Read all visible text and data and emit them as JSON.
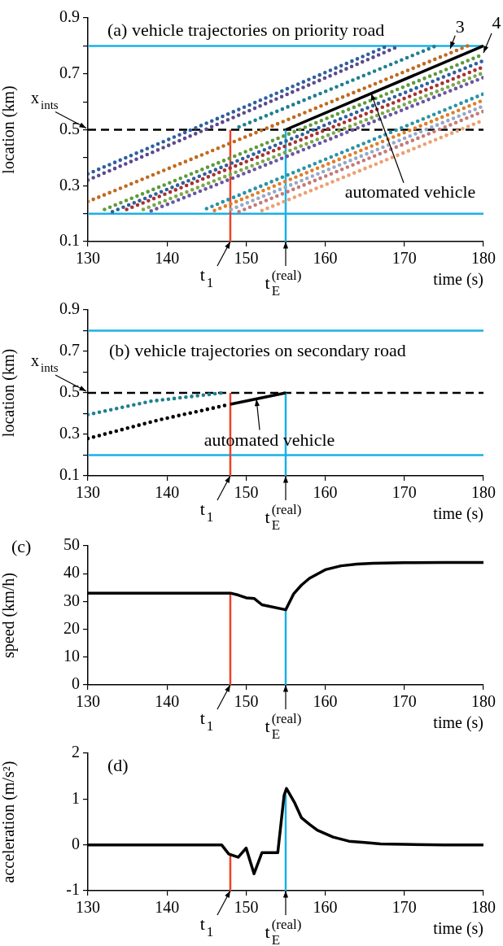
{
  "chart_data": [
    {
      "type": "line",
      "title": "(a) vehicle trajectories on priority road",
      "xlabel": "time (s)",
      "ylabel": "location (km)",
      "xlim": [
        130,
        180
      ],
      "xticks": [
        130,
        140,
        150,
        160,
        170,
        180
      ],
      "ylim": [
        0.1,
        0.9
      ],
      "yticks": [
        0.1,
        {
          "value": 0.2,
          "label": null
        },
        0.3,
        {
          "value": 0.4,
          "label": null
        },
        0.5,
        {
          "value": 0.6,
          "label": null
        },
        0.7,
        {
          "value": 0.8,
          "label": null
        },
        0.9
      ],
      "grid": false,
      "legend": false,
      "marker": "none",
      "series": [
        {
          "color": "#2f5f9e",
          "line_style": "dotted",
          "x": [
            130,
            167.9
          ],
          "values": [
            0.342,
            0.8
          ]
        },
        {
          "color": "#5b4a8b",
          "line_style": "dotted",
          "x": [
            130,
            169
          ],
          "values": [
            0.32,
            0.795
          ]
        },
        {
          "color": "#1f7f8f",
          "line_style": "dotted",
          "x": [
            149.1,
            174
          ],
          "values": [
            0.51,
            0.8
          ]
        },
        {
          "color": "#c06a20",
          "line_style": "dotted",
          "x": [
            130,
            178
          ],
          "values": [
            0.243,
            0.8
          ]
        },
        {
          "color": "#5e9a3c",
          "line_style": "dotted",
          "x": [
            132.1,
            180
          ],
          "values": [
            0.215,
            0.77
          ]
        },
        {
          "color": "#2f5f9e",
          "line_style": "dotted",
          "x": [
            133.1,
            180
          ],
          "values": [
            0.207,
            0.747
          ]
        },
        {
          "color": "#a83232",
          "line_style": "dotted",
          "x": [
            134.9,
            180
          ],
          "values": [
            0.215,
            0.725
          ]
        },
        {
          "color": "#7aa84a",
          "line_style": "dotted",
          "x": [
            137,
            180
          ],
          "values": [
            0.215,
            0.704
          ]
        },
        {
          "color": "#6b56a0",
          "line_style": "dotted",
          "x": [
            138,
            180
          ],
          "values": [
            0.21,
            0.687
          ]
        },
        {
          "color": "#2a93a6",
          "line_style": "dotted",
          "x": [
            145,
            180
          ],
          "values": [
            0.218,
            0.628
          ]
        },
        {
          "color": "#e07f2a",
          "line_style": "dotted",
          "x": [
            146,
            180
          ],
          "values": [
            0.211,
            0.606
          ]
        },
        {
          "color": "#94a9c6",
          "line_style": "dotted",
          "x": [
            148.1,
            180
          ],
          "values": [
            0.215,
            0.585
          ]
        },
        {
          "color": "#c47a78",
          "line_style": "dotted",
          "x": [
            149.1,
            180
          ],
          "values": [
            0.207,
            0.566
          ]
        },
        {
          "color": "#eda072",
          "line_style": "dotted",
          "x": [
            152,
            180
          ],
          "values": [
            0.211,
            0.534
          ]
        },
        {
          "color": "#000000",
          "x": [
            155,
            180
          ],
          "values": [
            0.5,
            0.8
          ]
        },
        {
          "color": "#ef4123",
          "x": [
            148,
            148
          ],
          "values": [
            0.1,
            0.5
          ]
        },
        {
          "color": "#1ab0e6",
          "x": [
            155,
            155
          ],
          "values": [
            0.1,
            0.5
          ]
        }
      ],
      "ref_lines": [
        {
          "axis": "y",
          "value": 0.8,
          "color": "#1ab0e6"
        },
        {
          "axis": "y",
          "value": 0.2,
          "color": "#1ab0e6"
        },
        {
          "axis": "y",
          "value": 0.5,
          "color": "#000000",
          "line_style": "dashed",
          "label": "x$_{ints}$"
        }
      ],
      "annotations": [
        {
          "text": "3",
          "x": 175.8,
          "y": 0.79
        },
        {
          "text": "4",
          "x": 180,
          "y": 0.775
        },
        {
          "text": "automated vehicle",
          "x": 165.8,
          "y": 0.63
        },
        {
          "text": "t$_{1}$",
          "x": 148,
          "y": 0.1
        },
        {
          "text": "t$_{E}$$^{(real)}$",
          "x": 155,
          "y": 0.1
        }
      ]
    },
    {
      "type": "line",
      "title": "(b) vehicle trajectories on secondary road",
      "xlabel": "time (s)",
      "ylabel": "location (km)",
      "xlim": [
        130,
        180
      ],
      "xticks": [
        130,
        140,
        150,
        160,
        170,
        180
      ],
      "ylim": [
        0.1,
        0.9
      ],
      "yticks": [
        0.1,
        {
          "value": 0.2,
          "label": null
        },
        0.3,
        {
          "value": 0.4,
          "label": null
        },
        0.5,
        {
          "value": 0.6,
          "label": null
        },
        0.7,
        {
          "value": 0.8,
          "label": null
        },
        0.9
      ],
      "grid": false,
      "legend": false,
      "marker": "none",
      "series": [
        {
          "color": "#1f7f8f",
          "line_style": "dotted",
          "x": [
            130,
            138,
            147
          ],
          "values": [
            0.395,
            0.46,
            0.5
          ]
        },
        {
          "color": "#000000",
          "line_style": "dotted",
          "x": [
            130,
            139,
            148
          ],
          "values": [
            0.28,
            0.37,
            0.445
          ]
        },
        {
          "color": "#000000",
          "x": [
            148,
            155
          ],
          "values": [
            0.445,
            0.5
          ]
        },
        {
          "color": "#ef4123",
          "x": [
            148,
            148
          ],
          "values": [
            0.1,
            0.5
          ]
        },
        {
          "color": "#1ab0e6",
          "x": [
            155,
            155
          ],
          "values": [
            0.1,
            0.5
          ]
        }
      ],
      "ref_lines": [
        {
          "axis": "y",
          "value": 0.8,
          "color": "#1ab0e6"
        },
        {
          "axis": "y",
          "value": 0.2,
          "color": "#1ab0e6"
        },
        {
          "axis": "y",
          "value": 0.5,
          "color": "#000000",
          "line_style": "dashed",
          "label": "x$_{ints}$"
        }
      ],
      "annotations": [
        {
          "text": "automated vehicle",
          "x": 151.3,
          "y": 0.47
        },
        {
          "text": "t$_{1}$",
          "x": 148,
          "y": 0.1
        },
        {
          "text": "t$_{E}$$^{(real)}$",
          "x": 155,
          "y": 0.1
        }
      ]
    },
    {
      "type": "line",
      "title": "(c)",
      "xlabel": "time (s)",
      "ylabel": "speed (km/h)",
      "xlim": [
        130,
        180
      ],
      "xticks": [
        130,
        140,
        150,
        160,
        170,
        180
      ],
      "ylim": [
        0,
        50
      ],
      "yticks": [
        0,
        10,
        20,
        30,
        40,
        50
      ],
      "grid": false,
      "legend": false,
      "marker": "none",
      "series": [
        {
          "color": "#000000",
          "x": [
            130,
            148,
            149,
            150,
            151,
            152,
            155,
            156,
            157,
            158,
            160,
            162,
            164,
            166,
            170,
            175,
            180
          ],
          "values": [
            33,
            33,
            32.3,
            31.3,
            31.1,
            28.8,
            27,
            32.7,
            35.9,
            38.3,
            41.4,
            42.8,
            43.4,
            43.7,
            43.9,
            44,
            44
          ]
        },
        {
          "color": "#ef4123",
          "x": [
            148,
            148
          ],
          "values": [
            0,
            33
          ]
        },
        {
          "color": "#1ab0e6",
          "x": [
            155,
            155
          ],
          "values": [
            0,
            27
          ]
        }
      ],
      "annotations": [
        {
          "text": "t$_{1}$",
          "x": 148,
          "y": 0
        },
        {
          "text": "t$_{E}$$^{(real)}$",
          "x": 155,
          "y": 0
        }
      ]
    },
    {
      "type": "line",
      "title": "(d)",
      "xlabel": "time (s)",
      "ylabel": "acceleration (m/s²)",
      "xlim": [
        130,
        180
      ],
      "xticks": [
        130,
        140,
        150,
        160,
        170,
        180
      ],
      "ylim": [
        -1,
        2
      ],
      "yticks": [
        -1,
        0,
        1,
        2
      ],
      "grid": false,
      "legend": false,
      "marker": "none",
      "series": [
        {
          "color": "#000000",
          "x": [
            130,
            146.9,
            147.8,
            149,
            150,
            151,
            152,
            154,
            154.8,
            155.1,
            156.1,
            157,
            158,
            159,
            161,
            163,
            165,
            167,
            170,
            175,
            180
          ],
          "values": [
            0,
            0,
            -0.2,
            -0.27,
            -0.07,
            -0.63,
            -0.17,
            -0.17,
            1.08,
            1.23,
            0.93,
            0.59,
            0.45,
            0.32,
            0.17,
            0.08,
            0.05,
            0.02,
            0.01,
            0,
            0
          ]
        },
        {
          "color": "#ef4123",
          "x": [
            148,
            148
          ],
          "values": [
            -1,
            -0.2
          ]
        },
        {
          "color": "#1ab0e6",
          "x": [
            155,
            155
          ],
          "values": [
            -1,
            1.1
          ]
        }
      ],
      "annotations": [
        {
          "text": "t$_{1}$",
          "x": 148,
          "y": -1
        },
        {
          "text": "t$_{E}$$^{(real)}$",
          "x": 155,
          "y": -1
        }
      ]
    }
  ]
}
